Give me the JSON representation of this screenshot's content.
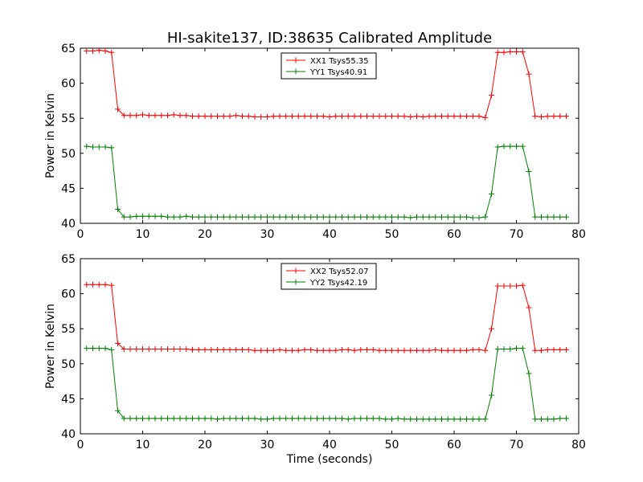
{
  "title": "HI-sakite137, ID:38635 Calibrated Amplitude",
  "colors": {
    "xx": "#ff0000",
    "yy": "#008000"
  },
  "chart_data": [
    {
      "type": "line",
      "ylabel": "Power in Kelvin",
      "xlabel": "",
      "xlim": [
        0,
        80
      ],
      "ylim": [
        40,
        65
      ],
      "xticks": [
        "0",
        "10",
        "20",
        "30",
        "40",
        "50",
        "60",
        "70",
        "80"
      ],
      "yticks": [
        "40",
        "45",
        "50",
        "55",
        "60",
        "65"
      ],
      "legend_position": "top-center",
      "series": [
        {
          "name": "XX1 Tsys55.35",
          "color": "#ff0000",
          "x": [
            1,
            2,
            3,
            4,
            5,
            6,
            7,
            8,
            9,
            10,
            11,
            12,
            13,
            14,
            15,
            16,
            17,
            18,
            19,
            20,
            21,
            22,
            23,
            24,
            25,
            26,
            27,
            28,
            29,
            30,
            31,
            32,
            33,
            34,
            35,
            36,
            37,
            38,
            39,
            40,
            41,
            42,
            43,
            44,
            45,
            46,
            47,
            48,
            49,
            50,
            51,
            52,
            53,
            54,
            55,
            56,
            57,
            58,
            59,
            60,
            61,
            62,
            63,
            64,
            65,
            66,
            67,
            68,
            69,
            70,
            71,
            72,
            73,
            74,
            75,
            76,
            77,
            78
          ],
          "y": [
            64.6,
            64.6,
            64.7,
            64.6,
            64.4,
            56.3,
            55.4,
            55.4,
            55.4,
            55.5,
            55.4,
            55.4,
            55.4,
            55.4,
            55.5,
            55.4,
            55.4,
            55.3,
            55.3,
            55.3,
            55.3,
            55.3,
            55.3,
            55.3,
            55.4,
            55.3,
            55.3,
            55.2,
            55.2,
            55.2,
            55.3,
            55.3,
            55.3,
            55.3,
            55.3,
            55.3,
            55.3,
            55.3,
            55.3,
            55.2,
            55.3,
            55.3,
            55.3,
            55.3,
            55.3,
            55.3,
            55.3,
            55.3,
            55.3,
            55.3,
            55.3,
            55.3,
            55.2,
            55.3,
            55.2,
            55.3,
            55.3,
            55.3,
            55.3,
            55.3,
            55.3,
            55.3,
            55.3,
            55.3,
            55.1,
            58.3,
            64.4,
            64.4,
            64.5,
            64.5,
            64.5,
            61.3,
            55.3,
            55.2,
            55.3,
            55.3,
            55.3,
            55.3
          ]
        },
        {
          "name": "YY1 Tsys40.91",
          "color": "#008000",
          "x": [
            1,
            2,
            3,
            4,
            5,
            6,
            7,
            8,
            9,
            10,
            11,
            12,
            13,
            14,
            15,
            16,
            17,
            18,
            19,
            20,
            21,
            22,
            23,
            24,
            25,
            26,
            27,
            28,
            29,
            30,
            31,
            32,
            33,
            34,
            35,
            36,
            37,
            38,
            39,
            40,
            41,
            42,
            43,
            44,
            45,
            46,
            47,
            48,
            49,
            50,
            51,
            52,
            53,
            54,
            55,
            56,
            57,
            58,
            59,
            60,
            61,
            62,
            63,
            64,
            65,
            66,
            67,
            68,
            69,
            70,
            71,
            72,
            73,
            74,
            75,
            76,
            77,
            78
          ],
          "y": [
            51.0,
            50.9,
            50.9,
            50.9,
            50.8,
            42.0,
            40.9,
            40.9,
            41.0,
            41.0,
            41.0,
            41.0,
            41.0,
            40.9,
            40.9,
            40.9,
            41.0,
            40.9,
            40.9,
            40.9,
            40.9,
            40.9,
            40.9,
            40.9,
            40.9,
            40.9,
            40.9,
            40.9,
            40.9,
            40.9,
            40.9,
            40.9,
            40.9,
            40.9,
            40.9,
            40.9,
            40.9,
            40.9,
            40.9,
            40.9,
            40.9,
            40.9,
            40.9,
            40.9,
            40.9,
            40.9,
            40.9,
            40.9,
            40.9,
            40.9,
            40.9,
            40.9,
            40.8,
            40.9,
            40.9,
            40.9,
            40.9,
            40.9,
            40.9,
            40.9,
            40.9,
            40.9,
            40.8,
            40.8,
            40.9,
            44.2,
            50.9,
            51.0,
            51.0,
            51.0,
            51.0,
            47.4,
            40.9,
            40.9,
            40.9,
            40.9,
            40.9,
            40.9
          ]
        }
      ]
    },
    {
      "type": "line",
      "ylabel": "Power in Kelvin",
      "xlabel": "Time (seconds)",
      "xlim": [
        0,
        80
      ],
      "ylim": [
        40,
        65
      ],
      "xticks": [
        "0",
        "10",
        "20",
        "30",
        "40",
        "50",
        "60",
        "70",
        "80"
      ],
      "yticks": [
        "40",
        "45",
        "50",
        "55",
        "60",
        "65"
      ],
      "legend_position": "top-center",
      "series": [
        {
          "name": "XX2 Tsys52.07",
          "color": "#ff0000",
          "x": [
            1,
            2,
            3,
            4,
            5,
            6,
            7,
            8,
            9,
            10,
            11,
            12,
            13,
            14,
            15,
            16,
            17,
            18,
            19,
            20,
            21,
            22,
            23,
            24,
            25,
            26,
            27,
            28,
            29,
            30,
            31,
            32,
            33,
            34,
            35,
            36,
            37,
            38,
            39,
            40,
            41,
            42,
            43,
            44,
            45,
            46,
            47,
            48,
            49,
            50,
            51,
            52,
            53,
            54,
            55,
            56,
            57,
            58,
            59,
            60,
            61,
            62,
            63,
            64,
            65,
            66,
            67,
            68,
            69,
            70,
            71,
            72,
            73,
            74,
            75,
            76,
            77,
            78
          ],
          "y": [
            61.3,
            61.3,
            61.3,
            61.3,
            61.2,
            52.9,
            52.1,
            52.1,
            52.1,
            52.1,
            52.1,
            52.1,
            52.1,
            52.1,
            52.1,
            52.1,
            52.1,
            52.0,
            52.0,
            52.0,
            52.0,
            52.0,
            52.0,
            52.0,
            52.0,
            52.0,
            52.0,
            51.9,
            51.9,
            51.9,
            51.9,
            52.0,
            51.9,
            51.9,
            51.9,
            52.0,
            52.0,
            51.9,
            51.9,
            51.9,
            51.9,
            52.0,
            52.0,
            51.9,
            52.0,
            52.0,
            52.0,
            51.9,
            51.9,
            51.9,
            51.9,
            51.9,
            51.9,
            51.9,
            51.9,
            51.9,
            52.0,
            51.9,
            51.9,
            51.9,
            51.9,
            51.9,
            52.0,
            52.0,
            51.9,
            55.0,
            61.1,
            61.1,
            61.1,
            61.1,
            61.2,
            58.0,
            51.9,
            51.9,
            52.0,
            52.0,
            52.0,
            52.0
          ]
        },
        {
          "name": "YY2 Tsys42.19",
          "color": "#008000",
          "x": [
            1,
            2,
            3,
            4,
            5,
            6,
            7,
            8,
            9,
            10,
            11,
            12,
            13,
            14,
            15,
            16,
            17,
            18,
            19,
            20,
            21,
            22,
            23,
            24,
            25,
            26,
            27,
            28,
            29,
            30,
            31,
            32,
            33,
            34,
            35,
            36,
            37,
            38,
            39,
            40,
            41,
            42,
            43,
            44,
            45,
            46,
            47,
            48,
            49,
            50,
            51,
            52,
            53,
            54,
            55,
            56,
            57,
            58,
            59,
            60,
            61,
            62,
            63,
            64,
            65,
            66,
            67,
            68,
            69,
            70,
            71,
            72,
            73,
            74,
            75,
            76,
            77,
            78
          ],
          "y": [
            52.2,
            52.2,
            52.2,
            52.2,
            52.0,
            43.3,
            42.2,
            42.2,
            42.2,
            42.2,
            42.2,
            42.2,
            42.2,
            42.2,
            42.2,
            42.2,
            42.2,
            42.2,
            42.2,
            42.2,
            42.2,
            42.1,
            42.2,
            42.2,
            42.2,
            42.2,
            42.2,
            42.2,
            42.1,
            42.1,
            42.2,
            42.2,
            42.2,
            42.2,
            42.2,
            42.2,
            42.2,
            42.2,
            42.2,
            42.2,
            42.2,
            42.2,
            42.1,
            42.2,
            42.2,
            42.2,
            42.2,
            42.2,
            42.1,
            42.1,
            42.2,
            42.1,
            42.1,
            42.1,
            42.1,
            42.1,
            42.1,
            42.1,
            42.1,
            42.1,
            42.1,
            42.1,
            42.1,
            42.1,
            42.1,
            45.5,
            52.1,
            52.1,
            52.1,
            52.2,
            52.2,
            48.6,
            42.1,
            42.1,
            42.1,
            42.1,
            42.2,
            42.2
          ]
        }
      ]
    }
  ]
}
